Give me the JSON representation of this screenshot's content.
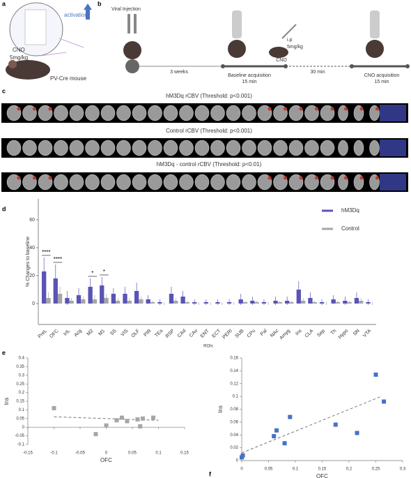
{
  "panel_labels": [
    "a",
    "b",
    "c",
    "d",
    "e",
    "f"
  ],
  "panel_a": {
    "activation": "activation",
    "drug": "CNO",
    "dose": "5mg/kg",
    "mouse": "PV-Cre mouse"
  },
  "panel_b": {
    "injection": "Viral Injection",
    "wait": "3 weeks",
    "baseline": "Baseline acquisition",
    "baseline_time": "15 min",
    "route": "i.p",
    "dose": "5mg/kg",
    "drug": "CNO",
    "gap": "30 min",
    "cno": "CNO acquisition",
    "cno_time": "15 min"
  },
  "panel_c": {
    "titles": [
      "hM3Dq rCBV (Threshold: p<0.001)",
      "Control rCBV (Threshold: p<0.001)",
      "hM3Dq - control rCBV (Threshold: p<0.01)"
    ]
  },
  "chart_data": [
    {
      "type": "bar",
      "ylabel": "% Changes to baseline",
      "xlabel": "ROIs",
      "categories": [
        "PreL",
        "OFC",
        "IrIL",
        "Acg",
        "M2",
        "M1",
        "SS",
        "VIS",
        "OLF",
        "PIR",
        "TEa",
        "RSP",
        "CAd",
        "CAv",
        "ENT",
        "ECT",
        "PERI",
        "SUB",
        "CPu",
        "Pal",
        "NAc",
        "Amyg",
        "Ins",
        "CLA",
        "Sep",
        "Th",
        "Hypo",
        "SN",
        "VTA"
      ],
      "series": [
        {
          "name": "hM3Dq",
          "color": "#5a54b6",
          "values": [
            23,
            18,
            4,
            6,
            12,
            13,
            7,
            7,
            9,
            3,
            1,
            7,
            5,
            1,
            1,
            1,
            1,
            3,
            2,
            1,
            2,
            2,
            10,
            4,
            1,
            3,
            2,
            4,
            1
          ],
          "errors": [
            10,
            10,
            5,
            5,
            6,
            6,
            4,
            5,
            6,
            3,
            2,
            5,
            4,
            2,
            2,
            2,
            2,
            4,
            3,
            2,
            3,
            3,
            6,
            4,
            2,
            3,
            3,
            4,
            2
          ]
        },
        {
          "name": "Control",
          "color": "#a6a6a6",
          "values": [
            4,
            7,
            2,
            3,
            3,
            4,
            2,
            2,
            3,
            1,
            0,
            2,
            1,
            0,
            0,
            0,
            0,
            1,
            1,
            0,
            1,
            1,
            2,
            1,
            0,
            1,
            1,
            2,
            0
          ],
          "errors": [
            4,
            5,
            2,
            2,
            3,
            3,
            2,
            2,
            2,
            1,
            1,
            2,
            1,
            1,
            1,
            1,
            1,
            1,
            1,
            1,
            1,
            1,
            2,
            1,
            1,
            1,
            1,
            2,
            1
          ]
        }
      ],
      "significance": [
        "****",
        "****",
        null,
        null,
        "*",
        "*",
        null,
        null,
        null,
        null,
        null,
        null,
        null,
        null,
        null,
        null,
        null,
        null,
        null,
        null,
        null,
        null,
        null,
        null,
        null,
        null,
        null,
        null,
        null
      ],
      "ylim": [
        -15,
        75
      ],
      "yticks": [
        0,
        20,
        40,
        60
      ]
    },
    {
      "type": "scatter",
      "xlabel": "OFC",
      "ylabel": "Ins",
      "color": "#a6a6a6",
      "x": [
        -0.1,
        -0.02,
        0,
        0.02,
        0.03,
        0.04,
        0.06,
        0.065,
        0.07,
        0.09
      ],
      "values": [
        0.11,
        -0.04,
        0.01,
        0.04,
        0.055,
        0.035,
        0.045,
        0.005,
        0.05,
        0.055
      ],
      "trendline": {
        "x": [
          -0.1,
          0.1
        ],
        "y": [
          0.06,
          0.04
        ]
      },
      "xlim": [
        -0.15,
        0.15
      ],
      "xticks": [
        -0.15,
        -0.1,
        -0.05,
        0,
        0.05,
        0.1,
        0.15
      ],
      "ylim": [
        -0.1,
        0.4
      ],
      "yticks": [
        -0.1,
        -0.05,
        0,
        0.05,
        0.1,
        0.15,
        0.2,
        0.25,
        0.3,
        0.35,
        0.4
      ]
    },
    {
      "type": "scatter",
      "xlabel": "OFC",
      "ylabel": "Ins",
      "color": "#4472c4",
      "x": [
        0,
        0.002,
        0.06,
        0.065,
        0.08,
        0.09,
        0.175,
        0.215,
        0.25,
        0.265
      ],
      "values": [
        0.005,
        0.008,
        0.038,
        0.047,
        0.027,
        0.068,
        0.056,
        0.043,
        0.134,
        0.092
      ],
      "trendline": {
        "x": [
          0,
          0.26
        ],
        "y": [
          0.012,
          0.1
        ]
      },
      "xlim": [
        0,
        0.3
      ],
      "xticks": [
        0,
        0.05,
        0.1,
        0.15,
        0.2,
        0.25,
        0.3
      ],
      "ylim": [
        0,
        0.16
      ],
      "yticks": [
        0,
        0.02,
        0.04,
        0.06,
        0.08,
        0.1,
        0.12,
        0.14,
        0.16
      ]
    }
  ]
}
